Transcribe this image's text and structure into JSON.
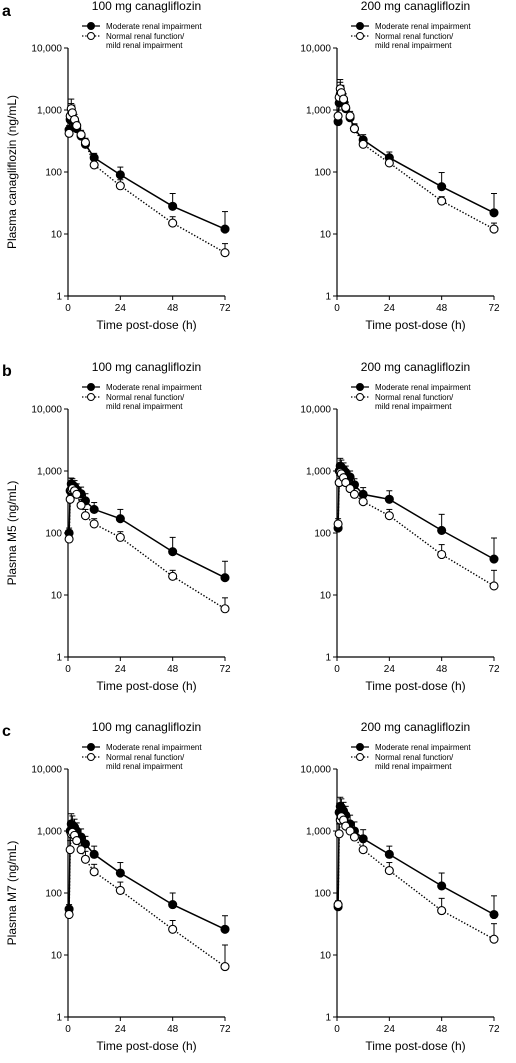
{
  "panels": [
    {
      "letter": "a",
      "ylabel": "Plasma canagliflozin (ng/mL)"
    },
    {
      "letter": "b",
      "ylabel": "Plasma M5 (ng/mL)"
    },
    {
      "letter": "c",
      "ylabel": "Plasma M7 (ng/mL)"
    }
  ],
  "colors": {
    "moderate": "#000000",
    "normal": "#000000"
  },
  "chart_data": [
    {
      "type": "line",
      "panel": "a",
      "title": "100 mg canagliflozin",
      "xlabel": "Time post-dose (h)",
      "ylabel": "Plasma canagliflozin (ng/mL)",
      "xlim": [
        0,
        72
      ],
      "ylim": [
        1,
        10000
      ],
      "yscale": "log",
      "xticks": [
        0,
        24,
        48,
        72
      ],
      "yticks": [
        1,
        10,
        100,
        1000,
        10000
      ],
      "xtick_labels": [
        "0",
        "24",
        "48",
        "72"
      ],
      "ytick_labels": [
        "1",
        "10",
        "100",
        "1,000",
        "10,000"
      ],
      "legend": "top-right",
      "series": [
        {
          "name": "Moderate renal impairment",
          "marker": "filled",
          "line": "solid",
          "x": [
            0.5,
            1,
            1.5,
            2,
            3,
            4,
            6,
            8,
            12,
            24,
            48,
            72
          ],
          "y": [
            480,
            700,
            820,
            780,
            620,
            500,
            380,
            280,
            170,
            90,
            28,
            12
          ],
          "err": [
            80,
            200,
            450,
            350,
            150,
            100,
            60,
            40,
            30,
            30,
            17,
            11
          ]
        },
        {
          "name": "Normal renal function/ mild renal impairment",
          "marker": "open",
          "line": "dotted",
          "x": [
            0.5,
            1,
            1.5,
            2,
            3,
            4,
            6,
            8,
            12,
            24,
            48,
            72
          ],
          "y": [
            420,
            800,
            1050,
            900,
            700,
            560,
            400,
            300,
            130,
            60,
            15,
            5
          ],
          "err": [
            80,
            250,
            450,
            300,
            150,
            100,
            70,
            50,
            25,
            15,
            4,
            2
          ]
        }
      ]
    },
    {
      "type": "line",
      "panel": "a",
      "title": "200 mg canagliflozin",
      "xlabel": "Time post-dose (h)",
      "ylabel": "",
      "xlim": [
        0,
        72
      ],
      "ylim": [
        1,
        10000
      ],
      "yscale": "log",
      "xticks": [
        0,
        24,
        48,
        72
      ],
      "yticks": [
        1,
        10,
        100,
        1000,
        10000
      ],
      "xtick_labels": [
        "0",
        "24",
        "48",
        "72"
      ],
      "ytick_labels": [
        "1",
        "10",
        "100",
        "1,000",
        "10,000"
      ],
      "legend": "top-right",
      "series": [
        {
          "name": "Moderate renal impairment",
          "marker": "filled",
          "line": "solid",
          "x": [
            0.5,
            1,
            1.5,
            2,
            3,
            4,
            6,
            8,
            12,
            24,
            48,
            72
          ],
          "y": [
            650,
            1300,
            1800,
            1700,
            1400,
            1050,
            750,
            500,
            330,
            170,
            58,
            22
          ],
          "err": [
            150,
            500,
            1000,
            700,
            400,
            250,
            150,
            100,
            70,
            40,
            40,
            23
          ]
        },
        {
          "name": "Normal renal function/ mild renal impairment",
          "marker": "open",
          "line": "dotted",
          "x": [
            0.5,
            1,
            1.5,
            2,
            3,
            4,
            6,
            8,
            12,
            24,
            48,
            72
          ],
          "y": [
            800,
            1600,
            2200,
            1900,
            1500,
            1100,
            800,
            500,
            280,
            140,
            34,
            12
          ],
          "err": [
            200,
            600,
            900,
            600,
            350,
            250,
            150,
            80,
            50,
            25,
            6,
            3
          ]
        }
      ]
    },
    {
      "type": "line",
      "panel": "b",
      "title": "100 mg canagliflozin",
      "xlabel": "Time post-dose (h)",
      "ylabel": "Plasma M5 (ng/mL)",
      "xlim": [
        0,
        72
      ],
      "ylim": [
        1,
        10000
      ],
      "yscale": "log",
      "xticks": [
        0,
        24,
        48,
        72
      ],
      "yticks": [
        1,
        10,
        100,
        1000,
        10000
      ],
      "xtick_labels": [
        "0",
        "24",
        "48",
        "72"
      ],
      "ytick_labels": [
        "1",
        "10",
        "100",
        "1,000",
        "10,000"
      ],
      "legend": "top-right",
      "series": [
        {
          "name": "Moderate renal impairment",
          "marker": "filled",
          "line": "solid",
          "x": [
            0.5,
            1,
            1.5,
            2,
            3,
            4,
            6,
            8,
            12,
            24,
            48,
            72
          ],
          "y": [
            100,
            480,
            620,
            600,
            560,
            500,
            430,
            330,
            240,
            170,
            50,
            19
          ],
          "err": [
            20,
            120,
            150,
            150,
            140,
            120,
            120,
            100,
            70,
            70,
            35,
            16
          ]
        },
        {
          "name": "Normal renal function/ mild renal impairment",
          "marker": "open",
          "line": "dotted",
          "x": [
            0.5,
            1,
            1.5,
            2,
            3,
            4,
            6,
            8,
            12,
            24,
            48,
            72
          ],
          "y": [
            80,
            350,
            500,
            520,
            480,
            420,
            280,
            190,
            140,
            85,
            20,
            6
          ],
          "err": [
            20,
            100,
            150,
            150,
            130,
            100,
            70,
            50,
            30,
            20,
            5,
            3
          ]
        }
      ]
    },
    {
      "type": "line",
      "panel": "b",
      "title": "200 mg canagliflozin",
      "xlabel": "Time post-dose (h)",
      "ylabel": "",
      "xlim": [
        0,
        72
      ],
      "ylim": [
        1,
        10000
      ],
      "yscale": "log",
      "xticks": [
        0,
        24,
        48,
        72
      ],
      "yticks": [
        1,
        10,
        100,
        1000,
        10000
      ],
      "xtick_labels": [
        "0",
        "24",
        "48",
        "72"
      ],
      "ytick_labels": [
        "1",
        "10",
        "100",
        "1,000",
        "10,000"
      ],
      "legend": "top-right",
      "series": [
        {
          "name": "Moderate renal impairment",
          "marker": "filled",
          "line": "solid",
          "x": [
            0.5,
            1,
            1.5,
            2,
            3,
            4,
            6,
            8,
            12,
            24,
            48,
            72
          ],
          "y": [
            120,
            1000,
            1200,
            1150,
            1050,
            950,
            800,
            600,
            420,
            350,
            110,
            38
          ],
          "err": [
            30,
            300,
            400,
            350,
            300,
            250,
            200,
            150,
            120,
            130,
            90,
            45
          ]
        },
        {
          "name": "Normal renal function/ mild renal impairment",
          "marker": "open",
          "line": "dotted",
          "x": [
            0.5,
            1,
            1.5,
            2,
            3,
            4,
            6,
            8,
            12,
            24,
            48,
            72
          ],
          "y": [
            140,
            650,
            950,
            900,
            780,
            650,
            520,
            420,
            320,
            190,
            45,
            14
          ],
          "err": [
            30,
            200,
            300,
            300,
            250,
            200,
            150,
            100,
            80,
            50,
            20,
            11
          ]
        }
      ]
    },
    {
      "type": "line",
      "panel": "c",
      "title": "100 mg canagliflozin",
      "xlabel": "Time post-dose (h)",
      "ylabel": "Plasma M7 (ng/mL)",
      "xlim": [
        0,
        72
      ],
      "ylim": [
        1,
        10000
      ],
      "yscale": "log",
      "xticks": [
        0,
        24,
        48,
        72
      ],
      "yticks": [
        1,
        10,
        100,
        1000,
        10000
      ],
      "xtick_labels": [
        "0",
        "24",
        "48",
        "72"
      ],
      "ytick_labels": [
        "1",
        "10",
        "100",
        "1,000",
        "10,000"
      ],
      "legend": "top-right",
      "series": [
        {
          "name": "Moderate renal impairment",
          "marker": "filled",
          "line": "solid",
          "x": [
            0.5,
            1,
            1.5,
            2,
            3,
            4,
            6,
            8,
            12,
            24,
            48,
            72
          ],
          "y": [
            55,
            1000,
            1300,
            1250,
            1150,
            1000,
            800,
            620,
            420,
            210,
            65,
            26
          ],
          "err": [
            10,
            400,
            600,
            500,
            400,
            350,
            280,
            200,
            150,
            100,
            35,
            17
          ]
        },
        {
          "name": "Normal renal function/ mild renal impairment",
          "marker": "open",
          "line": "dotted",
          "x": [
            0.5,
            1,
            1.5,
            2,
            3,
            4,
            6,
            8,
            12,
            24,
            48,
            72
          ],
          "y": [
            45,
            500,
            900,
            950,
            850,
            700,
            500,
            350,
            220,
            110,
            26,
            6.5
          ],
          "err": [
            10,
            200,
            400,
            400,
            350,
            250,
            180,
            120,
            70,
            40,
            10,
            8
          ]
        }
      ]
    },
    {
      "type": "line",
      "panel": "c",
      "title": "200 mg canagliflozin",
      "xlabel": "Time post-dose (h)",
      "ylabel": "",
      "xlim": [
        0,
        72
      ],
      "ylim": [
        1,
        10000
      ],
      "yscale": "log",
      "xticks": [
        0,
        24,
        48,
        72
      ],
      "yticks": [
        1,
        10,
        100,
        1000,
        10000
      ],
      "xtick_labels": [
        "0",
        "24",
        "48",
        "72"
      ],
      "ytick_labels": [
        "1",
        "10",
        "100",
        "1,000",
        "10,000"
      ],
      "legend": "top-right",
      "series": [
        {
          "name": "Moderate renal impairment",
          "marker": "filled",
          "line": "solid",
          "x": [
            0.5,
            1,
            1.5,
            2,
            3,
            4,
            6,
            8,
            12,
            24,
            48,
            72
          ],
          "y": [
            60,
            2000,
            2500,
            2400,
            2100,
            1800,
            1300,
            1000,
            750,
            420,
            130,
            45
          ],
          "err": [
            10,
            800,
            1000,
            900,
            800,
            700,
            500,
            400,
            300,
            150,
            80,
            45
          ]
        },
        {
          "name": "Normal renal function/ mild renal impairment",
          "marker": "open",
          "line": "dotted",
          "x": [
            0.5,
            1,
            1.5,
            2,
            3,
            4,
            6,
            8,
            12,
            24,
            48,
            72
          ],
          "y": [
            65,
            900,
            1500,
            1700,
            1500,
            1200,
            1000,
            800,
            500,
            230,
            52,
            18
          ],
          "err": [
            10,
            400,
            600,
            600,
            500,
            450,
            400,
            300,
            200,
            80,
            30,
            14
          ]
        }
      ]
    }
  ]
}
